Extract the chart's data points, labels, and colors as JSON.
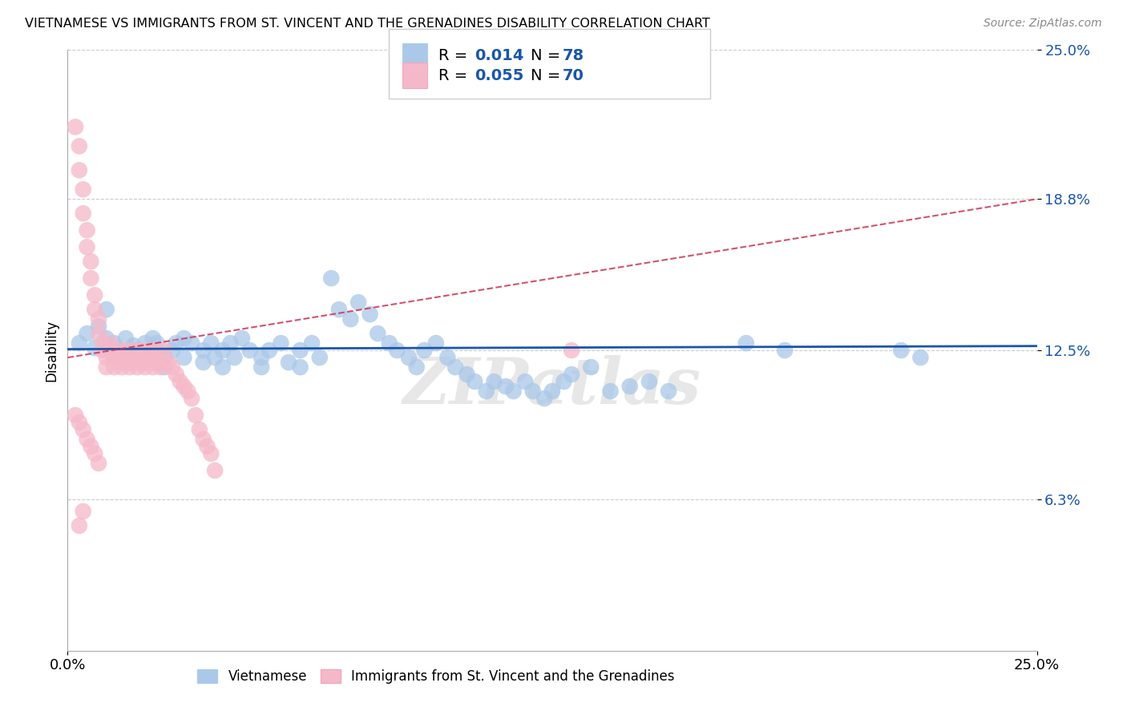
{
  "title": "VIETNAMESE VS IMMIGRANTS FROM ST. VINCENT AND THE GRENADINES DISABILITY CORRELATION CHART",
  "source": "Source: ZipAtlas.com",
  "ylabel": "Disability",
  "xlim": [
    0.0,
    0.25
  ],
  "ylim": [
    0.0,
    0.25
  ],
  "ytick_values": [
    0.063,
    0.125,
    0.188,
    0.25
  ],
  "ytick_labels": [
    "6.3%",
    "12.5%",
    "18.8%",
    "25.0%"
  ],
  "grid_color": "#cccccc",
  "blue_color": "#aac8e8",
  "pink_color": "#f5b8c8",
  "blue_line_color": "#1a56aa",
  "pink_line_color": "#cc3355",
  "blue_label": "Vietnamese",
  "pink_label": "Immigrants from St. Vincent and the Grenadines",
  "legend_text_color": "#1a56aa",
  "blue_line_y0": 0.1255,
  "blue_line_y1": 0.1268,
  "pink_line_y0": 0.122,
  "pink_line_y1": 0.188,
  "blue_scatter": [
    [
      0.003,
      0.128
    ],
    [
      0.005,
      0.132
    ],
    [
      0.007,
      0.126
    ],
    [
      0.008,
      0.135
    ],
    [
      0.01,
      0.142
    ],
    [
      0.01,
      0.13
    ],
    [
      0.012,
      0.128
    ],
    [
      0.013,
      0.125
    ],
    [
      0.015,
      0.13
    ],
    [
      0.015,
      0.122
    ],
    [
      0.017,
      0.127
    ],
    [
      0.018,
      0.125
    ],
    [
      0.02,
      0.122
    ],
    [
      0.02,
      0.128
    ],
    [
      0.022,
      0.13
    ],
    [
      0.022,
      0.125
    ],
    [
      0.023,
      0.128
    ],
    [
      0.025,
      0.122
    ],
    [
      0.025,
      0.118
    ],
    [
      0.027,
      0.125
    ],
    [
      0.028,
      0.128
    ],
    [
      0.03,
      0.13
    ],
    [
      0.03,
      0.122
    ],
    [
      0.032,
      0.128
    ],
    [
      0.035,
      0.125
    ],
    [
      0.035,
      0.12
    ],
    [
      0.037,
      0.128
    ],
    [
      0.038,
      0.122
    ],
    [
      0.04,
      0.118
    ],
    [
      0.04,
      0.125
    ],
    [
      0.042,
      0.128
    ],
    [
      0.043,
      0.122
    ],
    [
      0.045,
      0.13
    ],
    [
      0.047,
      0.125
    ],
    [
      0.05,
      0.122
    ],
    [
      0.05,
      0.118
    ],
    [
      0.052,
      0.125
    ],
    [
      0.055,
      0.128
    ],
    [
      0.057,
      0.12
    ],
    [
      0.06,
      0.125
    ],
    [
      0.06,
      0.118
    ],
    [
      0.063,
      0.128
    ],
    [
      0.065,
      0.122
    ],
    [
      0.068,
      0.155
    ],
    [
      0.07,
      0.142
    ],
    [
      0.073,
      0.138
    ],
    [
      0.075,
      0.145
    ],
    [
      0.078,
      0.14
    ],
    [
      0.08,
      0.132
    ],
    [
      0.083,
      0.128
    ],
    [
      0.085,
      0.125
    ],
    [
      0.088,
      0.122
    ],
    [
      0.09,
      0.118
    ],
    [
      0.092,
      0.125
    ],
    [
      0.095,
      0.128
    ],
    [
      0.098,
      0.122
    ],
    [
      0.1,
      0.118
    ],
    [
      0.103,
      0.115
    ],
    [
      0.105,
      0.112
    ],
    [
      0.108,
      0.108
    ],
    [
      0.11,
      0.112
    ],
    [
      0.113,
      0.11
    ],
    [
      0.115,
      0.108
    ],
    [
      0.118,
      0.112
    ],
    [
      0.12,
      0.108
    ],
    [
      0.123,
      0.105
    ],
    [
      0.125,
      0.108
    ],
    [
      0.128,
      0.112
    ],
    [
      0.13,
      0.115
    ],
    [
      0.135,
      0.118
    ],
    [
      0.14,
      0.108
    ],
    [
      0.145,
      0.11
    ],
    [
      0.15,
      0.112
    ],
    [
      0.155,
      0.108
    ],
    [
      0.175,
      0.128
    ],
    [
      0.185,
      0.125
    ],
    [
      0.215,
      0.125
    ],
    [
      0.22,
      0.122
    ]
  ],
  "pink_scatter": [
    [
      0.002,
      0.218
    ],
    [
      0.003,
      0.21
    ],
    [
      0.003,
      0.2
    ],
    [
      0.004,
      0.192
    ],
    [
      0.004,
      0.182
    ],
    [
      0.005,
      0.175
    ],
    [
      0.005,
      0.168
    ],
    [
      0.006,
      0.162
    ],
    [
      0.006,
      0.155
    ],
    [
      0.007,
      0.148
    ],
    [
      0.007,
      0.142
    ],
    [
      0.008,
      0.138
    ],
    [
      0.008,
      0.132
    ],
    [
      0.009,
      0.128
    ],
    [
      0.009,
      0.125
    ],
    [
      0.01,
      0.122
    ],
    [
      0.01,
      0.118
    ],
    [
      0.011,
      0.128
    ],
    [
      0.011,
      0.125
    ],
    [
      0.012,
      0.122
    ],
    [
      0.012,
      0.118
    ],
    [
      0.013,
      0.125
    ],
    [
      0.013,
      0.122
    ],
    [
      0.014,
      0.12
    ],
    [
      0.014,
      0.118
    ],
    [
      0.015,
      0.125
    ],
    [
      0.015,
      0.122
    ],
    [
      0.016,
      0.12
    ],
    [
      0.016,
      0.118
    ],
    [
      0.017,
      0.125
    ],
    [
      0.017,
      0.122
    ],
    [
      0.018,
      0.12
    ],
    [
      0.018,
      0.118
    ],
    [
      0.019,
      0.125
    ],
    [
      0.019,
      0.122
    ],
    [
      0.02,
      0.12
    ],
    [
      0.02,
      0.118
    ],
    [
      0.021,
      0.125
    ],
    [
      0.021,
      0.122
    ],
    [
      0.022,
      0.12
    ],
    [
      0.022,
      0.118
    ],
    [
      0.023,
      0.125
    ],
    [
      0.023,
      0.122
    ],
    [
      0.024,
      0.12
    ],
    [
      0.024,
      0.118
    ],
    [
      0.025,
      0.125
    ],
    [
      0.026,
      0.12
    ],
    [
      0.027,
      0.118
    ],
    [
      0.028,
      0.115
    ],
    [
      0.029,
      0.112
    ],
    [
      0.03,
      0.11
    ],
    [
      0.031,
      0.108
    ],
    [
      0.032,
      0.105
    ],
    [
      0.033,
      0.098
    ],
    [
      0.034,
      0.092
    ],
    [
      0.035,
      0.088
    ],
    [
      0.036,
      0.085
    ],
    [
      0.037,
      0.082
    ],
    [
      0.038,
      0.075
    ],
    [
      0.004,
      0.058
    ],
    [
      0.003,
      0.052
    ],
    [
      0.13,
      0.125
    ],
    [
      0.002,
      0.098
    ],
    [
      0.003,
      0.095
    ],
    [
      0.004,
      0.092
    ],
    [
      0.005,
      0.088
    ],
    [
      0.006,
      0.085
    ],
    [
      0.007,
      0.082
    ],
    [
      0.008,
      0.078
    ]
  ]
}
